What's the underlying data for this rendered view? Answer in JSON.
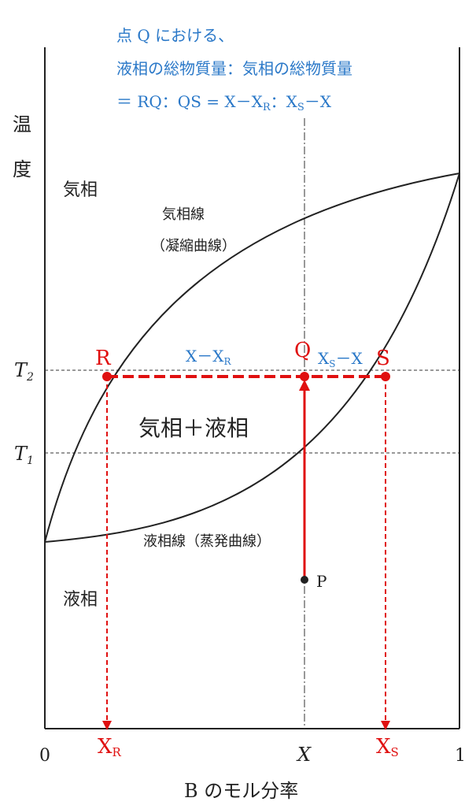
{
  "annotation": {
    "line1": "点 Q における、",
    "line2": "液相の総物質量：気相の総物質量",
    "line3": "＝ RQ：QS = X－X",
    "line3_sub1": "R",
    "line3_mid": "：X",
    "line3_sub2": "S",
    "line3_end": "－X"
  },
  "axes": {
    "ylabel_1": "温",
    "ylabel_2": "度",
    "xlabel": "B のモル分率",
    "x_tick_0": "0",
    "x_tick_X": "X",
    "x_tick_1": "1",
    "t2_label": "T",
    "t2_sub": "2",
    "t1_label": "T",
    "t1_sub": "1"
  },
  "regions": {
    "vapor": "気相",
    "liquid": "液相",
    "two_phase": "気相＋液相"
  },
  "curves": {
    "vapor_line_1": "気相線",
    "vapor_line_2": "（凝縮曲線）",
    "liquid_line": "液相線（蒸発曲線）"
  },
  "points": {
    "R": "R",
    "Q": "Q",
    "S": "S",
    "P": "P",
    "XR_main": "X",
    "XR_sub": "R",
    "XS_main": "X",
    "XS_sub": "S"
  },
  "segments": {
    "rq_main": "X－X",
    "rq_sub": "R",
    "qs_main": "X",
    "qs_sub": "S",
    "qs_end": "－X"
  },
  "colors": {
    "annotation": "#2a78c8",
    "highlight": "#e01010",
    "line": "#222222"
  }
}
